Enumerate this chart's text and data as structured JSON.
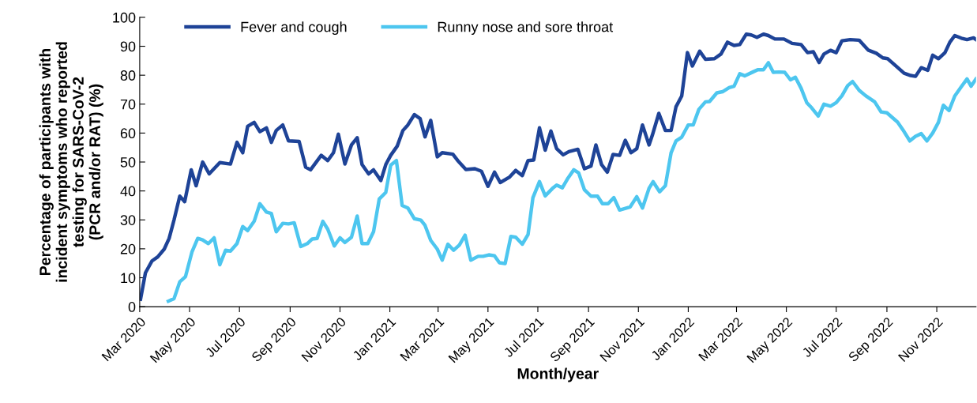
{
  "chart_data": {
    "type": "line",
    "xlabel": "Month/year",
    "ylabel": "Percentage of participants with\nincident symptoms who reported\ntesting for SARS-CoV-2\n(PCR and/or RAT) (%)",
    "xlim": [
      "2020-03-01",
      "2022-12-19"
    ],
    "xticks": [
      {
        "value": "2020-03-01",
        "label": "Mar 2020"
      },
      {
        "value": "2020-05-01",
        "label": "May 2020"
      },
      {
        "value": "2020-07-01",
        "label": "Jul 2020"
      },
      {
        "value": "2020-09-01",
        "label": "Sep 2020"
      },
      {
        "value": "2020-11-01",
        "label": "Nov 2020"
      },
      {
        "value": "2021-01-01",
        "label": "Jan 2021"
      },
      {
        "value": "2021-03-01",
        "label": "Mar 2021"
      },
      {
        "value": "2021-05-01",
        "label": "May 2021"
      },
      {
        "value": "2021-07-01",
        "label": "Jul 2021"
      },
      {
        "value": "2021-09-01",
        "label": "Sep 2021"
      },
      {
        "value": "2021-11-01",
        "label": "Nov 2021"
      },
      {
        "value": "2022-01-01",
        "label": "Jan 2022"
      },
      {
        "value": "2022-03-01",
        "label": "Mar 2022"
      },
      {
        "value": "2022-05-01",
        "label": "May 2022"
      },
      {
        "value": "2022-07-01",
        "label": "Jul 2022"
      },
      {
        "value": "2022-09-01",
        "label": "Sep 2022"
      },
      {
        "value": "2022-11-01",
        "label": "Nov 2022"
      }
    ],
    "ylim": [
      0,
      100
    ],
    "yticks": [
      0,
      10,
      20,
      30,
      40,
      50,
      60,
      70,
      80,
      90,
      100
    ],
    "grid": false,
    "legend": "top left",
    "marker": "none",
    "line_style": "solid",
    "series": [
      {
        "name": "Fever and cough",
        "color": "#1e4397",
        "x": [
          "2020-03-02",
          "2020-03-08",
          "2020-03-16",
          "2020-03-23",
          "2020-03-31",
          "2020-04-06",
          "2020-04-12",
          "2020-04-19",
          "2020-04-25",
          "2020-05-03",
          "2020-05-09",
          "2020-05-17",
          "2020-05-25",
          "2020-06-07",
          "2020-06-20",
          "2020-06-28",
          "2020-07-05",
          "2020-07-11",
          "2020-07-19",
          "2020-07-26",
          "2020-08-03",
          "2020-08-09",
          "2020-08-15",
          "2020-08-23",
          "2020-08-30",
          "2020-09-12",
          "2020-09-20",
          "2020-09-26",
          "2020-10-09",
          "2020-10-17",
          "2020-10-24",
          "2020-10-30",
          "2020-11-07",
          "2020-11-15",
          "2020-11-22",
          "2020-11-28",
          "2020-12-06",
          "2020-12-12",
          "2020-12-21",
          "2020-12-27",
          "2021-01-02",
          "2021-01-10",
          "2021-01-17",
          "2021-01-23",
          "2021-01-31",
          "2021-02-07",
          "2021-02-13",
          "2021-02-20",
          "2021-02-28",
          "2021-03-06",
          "2021-03-19",
          "2021-03-25",
          "2021-04-04",
          "2021-04-15",
          "2021-04-23",
          "2021-05-01",
          "2021-05-09",
          "2021-05-16",
          "2021-05-27",
          "2021-06-04",
          "2021-06-12",
          "2021-06-19",
          "2021-06-26",
          "2021-07-03",
          "2021-07-10",
          "2021-07-17",
          "2021-07-24",
          "2021-08-01",
          "2021-08-08",
          "2021-08-19",
          "2021-08-27",
          "2021-09-04",
          "2021-09-10",
          "2021-09-17",
          "2021-09-24",
          "2021-10-01",
          "2021-10-09",
          "2021-10-16",
          "2021-10-23",
          "2021-10-30",
          "2021-11-06",
          "2021-11-14",
          "2021-11-18",
          "2021-11-26",
          "2021-12-04",
          "2021-12-11",
          "2021-12-17",
          "2021-12-24",
          "2021-12-31",
          "2022-01-06",
          "2022-01-15",
          "2022-01-22",
          "2022-02-02",
          "2022-02-10",
          "2022-02-18",
          "2022-02-26",
          "2022-03-05",
          "2022-03-13",
          "2022-03-19",
          "2022-03-26",
          "2022-04-03",
          "2022-04-09",
          "2022-04-17",
          "2022-04-28",
          "2022-05-08",
          "2022-05-19",
          "2022-05-27",
          "2022-06-03",
          "2022-06-10",
          "2022-06-16",
          "2022-06-24",
          "2022-07-01",
          "2022-07-08",
          "2022-07-18",
          "2022-07-29",
          "2022-08-09",
          "2022-08-19",
          "2022-08-27",
          "2022-09-02",
          "2022-09-10",
          "2022-09-22",
          "2022-09-30",
          "2022-10-06",
          "2022-10-13",
          "2022-10-21",
          "2022-10-27",
          "2022-11-03",
          "2022-11-11",
          "2022-11-17",
          "2022-11-23",
          "2022-12-01",
          "2022-12-08",
          "2022-12-16",
          "2022-12-19"
        ],
        "values": [
          2.6,
          11.7,
          15.8,
          17.2,
          19.9,
          23.6,
          30,
          38.2,
          36.3,
          47.3,
          41.8,
          50,
          45.9,
          49.8,
          49.3,
          56.8,
          53.2,
          62.3,
          63.7,
          60.5,
          61.8,
          56.8,
          60.9,
          62.8,
          57.3,
          57.1,
          48.2,
          47.3,
          52.3,
          50.5,
          53.2,
          59.6,
          49.3,
          55.9,
          58.4,
          49.1,
          45.9,
          47.3,
          43.6,
          49.1,
          52.3,
          55.5,
          60.9,
          62.8,
          66.4,
          65,
          58.7,
          64.4,
          51.8,
          53.2,
          52.7,
          50.5,
          47.4,
          47.7,
          46.8,
          41.6,
          46.5,
          42.9,
          44.7,
          47.1,
          45.3,
          50.5,
          50.7,
          61.8,
          54.1,
          60.7,
          54.6,
          52.5,
          53.6,
          54.4,
          47.7,
          48.6,
          55.9,
          49.1,
          46.5,
          52.6,
          52.3,
          57.5,
          53.2,
          54.6,
          62.8,
          55.9,
          59.2,
          66.8,
          60.9,
          60.9,
          69.1,
          72.8,
          87.8,
          83.2,
          88.3,
          85.5,
          85.7,
          87.3,
          91.4,
          90.3,
          90.6,
          94.2,
          93.9,
          93.1,
          94.2,
          93.7,
          92.5,
          92.5,
          91,
          90.6,
          87.8,
          88.1,
          84.4,
          87.3,
          88.6,
          87.8,
          91.9,
          92.3,
          92.1,
          88.7,
          87.6,
          86,
          85.7,
          83.7,
          80.7,
          79.9,
          79.6,
          82.6,
          81.7,
          86.9,
          85.7,
          87.8,
          91.4,
          93.7,
          92.8,
          92.3,
          92.9,
          92.3
        ]
      },
      {
        "name": "Runny nose and sore throat",
        "color": "#4dc6ef",
        "x": [
          "2020-04-05",
          "2020-04-12",
          "2020-04-19",
          "2020-04-26",
          "2020-05-04",
          "2020-05-11",
          "2020-05-17",
          "2020-05-24",
          "2020-05-31",
          "2020-06-07",
          "2020-06-14",
          "2020-06-20",
          "2020-06-28",
          "2020-07-05",
          "2020-07-11",
          "2020-07-19",
          "2020-07-26",
          "2020-08-03",
          "2020-08-09",
          "2020-08-15",
          "2020-08-23",
          "2020-08-30",
          "2020-09-06",
          "2020-09-14",
          "2020-09-22",
          "2020-09-28",
          "2020-10-04",
          "2020-10-11",
          "2020-10-17",
          "2020-10-25",
          "2020-11-01",
          "2020-11-07",
          "2020-11-15",
          "2020-11-22",
          "2020-11-28",
          "2020-12-05",
          "2020-12-12",
          "2020-12-19",
          "2020-12-27",
          "2021-01-02",
          "2021-01-09",
          "2021-01-16",
          "2021-01-23",
          "2021-01-31",
          "2021-02-08",
          "2021-02-13",
          "2021-02-20",
          "2021-02-28",
          "2021-03-06",
          "2021-03-13",
          "2021-03-20",
          "2021-03-27",
          "2021-04-03",
          "2021-04-10",
          "2021-04-19",
          "2021-04-25",
          "2021-05-02",
          "2021-05-09",
          "2021-05-15",
          "2021-05-22",
          "2021-05-29",
          "2021-06-04",
          "2021-06-12",
          "2021-06-19",
          "2021-06-25",
          "2021-07-03",
          "2021-07-10",
          "2021-07-19",
          "2021-07-24",
          "2021-07-31",
          "2021-08-07",
          "2021-08-14",
          "2021-08-20",
          "2021-08-27",
          "2021-09-04",
          "2021-09-12",
          "2021-09-18",
          "2021-09-25",
          "2021-10-02",
          "2021-10-09",
          "2021-10-22",
          "2021-10-30",
          "2021-11-06",
          "2021-11-14",
          "2021-11-19",
          "2021-11-27",
          "2021-12-04",
          "2021-12-11",
          "2021-12-17",
          "2021-12-24",
          "2022-01-01",
          "2022-01-07",
          "2022-01-14",
          "2022-01-22",
          "2022-01-27",
          "2022-02-05",
          "2022-02-12",
          "2022-02-20",
          "2022-02-26",
          "2022-03-05",
          "2022-03-11",
          "2022-03-21",
          "2022-03-27",
          "2022-04-03",
          "2022-04-09",
          "2022-04-15",
          "2022-04-22",
          "2022-04-29",
          "2022-05-06",
          "2022-05-12",
          "2022-05-19",
          "2022-05-26",
          "2022-06-01",
          "2022-06-09",
          "2022-06-16",
          "2022-06-24",
          "2022-07-01",
          "2022-07-08",
          "2022-07-15",
          "2022-07-21",
          "2022-07-29",
          "2022-08-06",
          "2022-08-17",
          "2022-08-25",
          "2022-09-01",
          "2022-09-14",
          "2022-09-22",
          "2022-09-29",
          "2022-10-06",
          "2022-10-13",
          "2022-10-20",
          "2022-10-27",
          "2022-11-03",
          "2022-11-09",
          "2022-11-16",
          "2022-11-23",
          "2022-12-01",
          "2022-12-08",
          "2022-12-13",
          "2022-12-19"
        ],
        "values": [
          1.9,
          2.8,
          8.6,
          10.4,
          19,
          23.6,
          23.1,
          21.8,
          23.8,
          14.5,
          19.5,
          19.2,
          21.8,
          27.7,
          26.3,
          29.5,
          35.6,
          32.7,
          32.2,
          25.9,
          28.8,
          28.6,
          29,
          20.8,
          21.8,
          23.4,
          23.6,
          29.5,
          26.8,
          21,
          23.8,
          22.2,
          24,
          31.3,
          21.8,
          21.8,
          25.9,
          37.2,
          39.5,
          48.9,
          50.5,
          35,
          34.1,
          30.4,
          29.9,
          28.1,
          22.9,
          19.9,
          16.1,
          21.6,
          19.5,
          21.3,
          24.7,
          16.1,
          17.4,
          17.4,
          17.9,
          17.6,
          15.2,
          14.9,
          24.3,
          24,
          21.6,
          24.9,
          37.7,
          43.2,
          38.3,
          40.9,
          42,
          41.1,
          44.5,
          47.3,
          46.2,
          40.4,
          38.2,
          38.2,
          35.6,
          35.6,
          37.7,
          33.4,
          34.5,
          38,
          34.1,
          40.9,
          43.2,
          39.7,
          41.8,
          53.2,
          57.3,
          58.6,
          62.8,
          62.8,
          68.2,
          70.8,
          70.9,
          73.9,
          74.3,
          75.7,
          76.2,
          80.5,
          79.8,
          81.1,
          81.9,
          81.9,
          84.3,
          81,
          81.1,
          81,
          78.4,
          79.3,
          75.5,
          70.5,
          68.7,
          65.9,
          70,
          69.3,
          70.5,
          72.9,
          76.4,
          77.8,
          74.8,
          72.9,
          70.8,
          67.3,
          67,
          63.8,
          60.5,
          57.3,
          58.9,
          59.8,
          57.3,
          60,
          63.7,
          69.6,
          67.8,
          72.8,
          76,
          78.7,
          76.2,
          78.7
        ]
      }
    ]
  }
}
